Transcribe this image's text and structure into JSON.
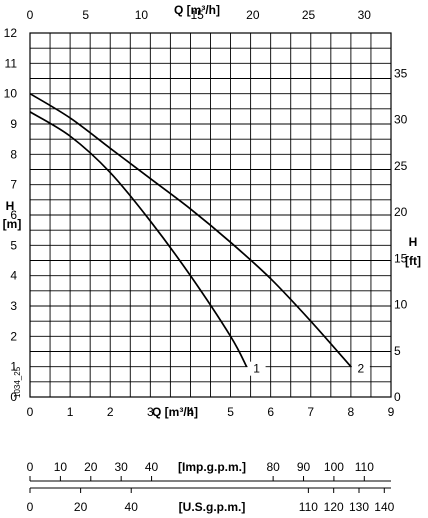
{
  "chart_data": {
    "type": "line",
    "code": "1034_25",
    "axes": {
      "left": {
        "label_top": "H",
        "label_bottom": "[m]",
        "ylim": [
          0,
          12
        ],
        "ticks": [
          0,
          1,
          2,
          3,
          4,
          5,
          6,
          7,
          8,
          9,
          10,
          11,
          12
        ]
      },
      "right": {
        "label_top": "H",
        "label_bottom": "[ft]",
        "ticks": [
          0,
          5,
          10,
          15,
          20,
          25,
          30,
          35
        ]
      },
      "top": {
        "label": "Q [m³/h]",
        "ticks": [
          0,
          5,
          10,
          15,
          20,
          25,
          30
        ]
      },
      "bottom": {
        "label": "Q [m³/h]",
        "xlim": [
          0,
          9
        ],
        "ticks": [
          0,
          1,
          2,
          3,
          4,
          5,
          6,
          7,
          8,
          9
        ]
      },
      "imp": {
        "label": "[Imp.g.p.m.]",
        "ticks": [
          0,
          10,
          20,
          30,
          40,
          80,
          90,
          100,
          110
        ]
      },
      "usgpm": {
        "label": "[U.S.g.p.m.]",
        "ticks": [
          0,
          20,
          40,
          110,
          120,
          130,
          140
        ]
      }
    },
    "series": [
      {
        "name": "1",
        "x": [
          0,
          1,
          2,
          3,
          4,
          5,
          5.4
        ],
        "y": [
          9.4,
          8.6,
          7.4,
          5.8,
          4.0,
          2.0,
          1.0
        ]
      },
      {
        "name": "2",
        "x": [
          0,
          1,
          2,
          3,
          4,
          5,
          6,
          7,
          8
        ],
        "y": [
          10.0,
          9.2,
          8.2,
          7.2,
          6.2,
          5.1,
          3.9,
          2.5,
          1.0
        ]
      }
    ],
    "grid": true
  }
}
